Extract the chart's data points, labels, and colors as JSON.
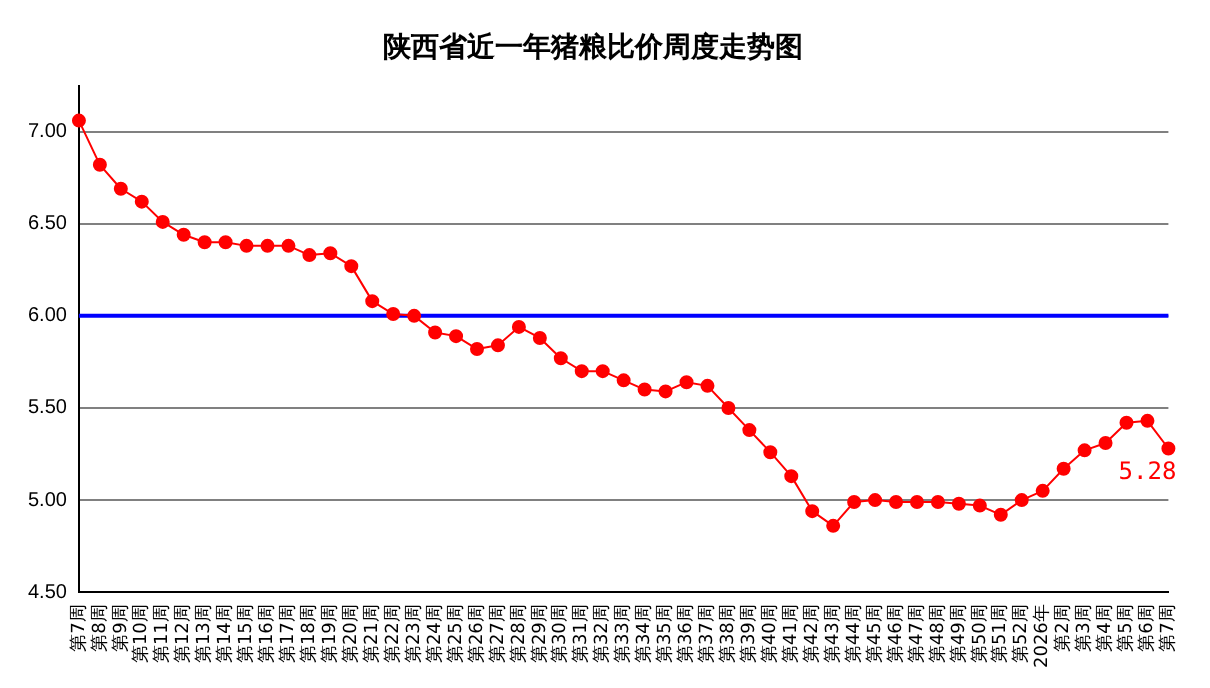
{
  "chart_data": {
    "type": "line",
    "title": "陕西省近一年猪粮比价周度走势图",
    "categories": [
      "第7周",
      "第8周",
      "第9周",
      "第10周",
      "第11周",
      "第12周",
      "第13周",
      "第14周",
      "第15周",
      "第16周",
      "第17周",
      "第18周",
      "第19周",
      "第20周",
      "第21周",
      "第22周",
      "第23周",
      "第24周",
      "第25周",
      "第26周",
      "第27周",
      "第28周",
      "第29周",
      "第30周",
      "第31周",
      "第32周",
      "第33周",
      "第34周",
      "第35周",
      "第36周",
      "第37周",
      "第38周",
      "第39周",
      "第40周",
      "第41周",
      "第42周",
      "第43周",
      "第44周",
      "第45周",
      "第46周",
      "第47周",
      "第48周",
      "第49周",
      "第50周",
      "第51周",
      "第52周",
      "2026年",
      "第2周",
      "第3周",
      "第4周",
      "第5周",
      "第6周",
      "第7周"
    ],
    "series": [
      {
        "color": "#ff0000",
        "values": [
          7.06,
          6.82,
          6.69,
          6.62,
          6.51,
          6.44,
          6.4,
          6.4,
          6.38,
          6.38,
          6.38,
          6.33,
          6.34,
          6.27,
          6.08,
          6.01,
          6.0,
          5.91,
          5.89,
          5.82,
          5.84,
          5.94,
          5.88,
          5.77,
          5.7,
          5.7,
          5.65,
          5.6,
          5.59,
          5.64,
          5.62,
          5.5,
          5.38,
          5.26,
          5.13,
          4.94,
          4.86,
          4.99,
          5.0,
          4.99,
          4.99,
          4.99,
          4.98,
          4.97,
          4.92,
          5.0,
          5.05,
          5.17,
          5.27,
          5.31,
          5.42,
          5.43,
          5.28
        ],
        "value_labels": [
          null,
          null,
          null,
          null,
          null,
          null,
          null,
          null,
          null,
          null,
          null,
          null,
          null,
          null,
          null,
          null,
          null,
          null,
          null,
          null,
          null,
          null,
          null,
          null,
          null,
          null,
          null,
          null,
          null,
          null,
          null,
          null,
          null,
          null,
          null,
          null,
          null,
          null,
          null,
          null,
          null,
          null,
          null,
          null,
          null,
          null,
          null,
          null,
          null,
          null,
          null,
          null,
          "5.28"
        ]
      }
    ],
    "ylim": [
      4.5,
      7.25
    ],
    "yticks": [
      {
        "value": 4.5,
        "label": "4.50"
      },
      {
        "value": 5,
        "label": "5.00"
      },
      {
        "value": 5.5,
        "label": "5.50"
      },
      {
        "value": 6,
        "label": "6.00"
      },
      {
        "value": 6.5,
        "label": "6.50"
      },
      {
        "value": 7,
        "label": "7.00"
      }
    ],
    "grid": "y",
    "marker": "circle",
    "line_style": "solid",
    "legend": false,
    "ref_lines": [
      {
        "axis": "y",
        "value": 6,
        "color": "#0000ff"
      }
    ]
  }
}
